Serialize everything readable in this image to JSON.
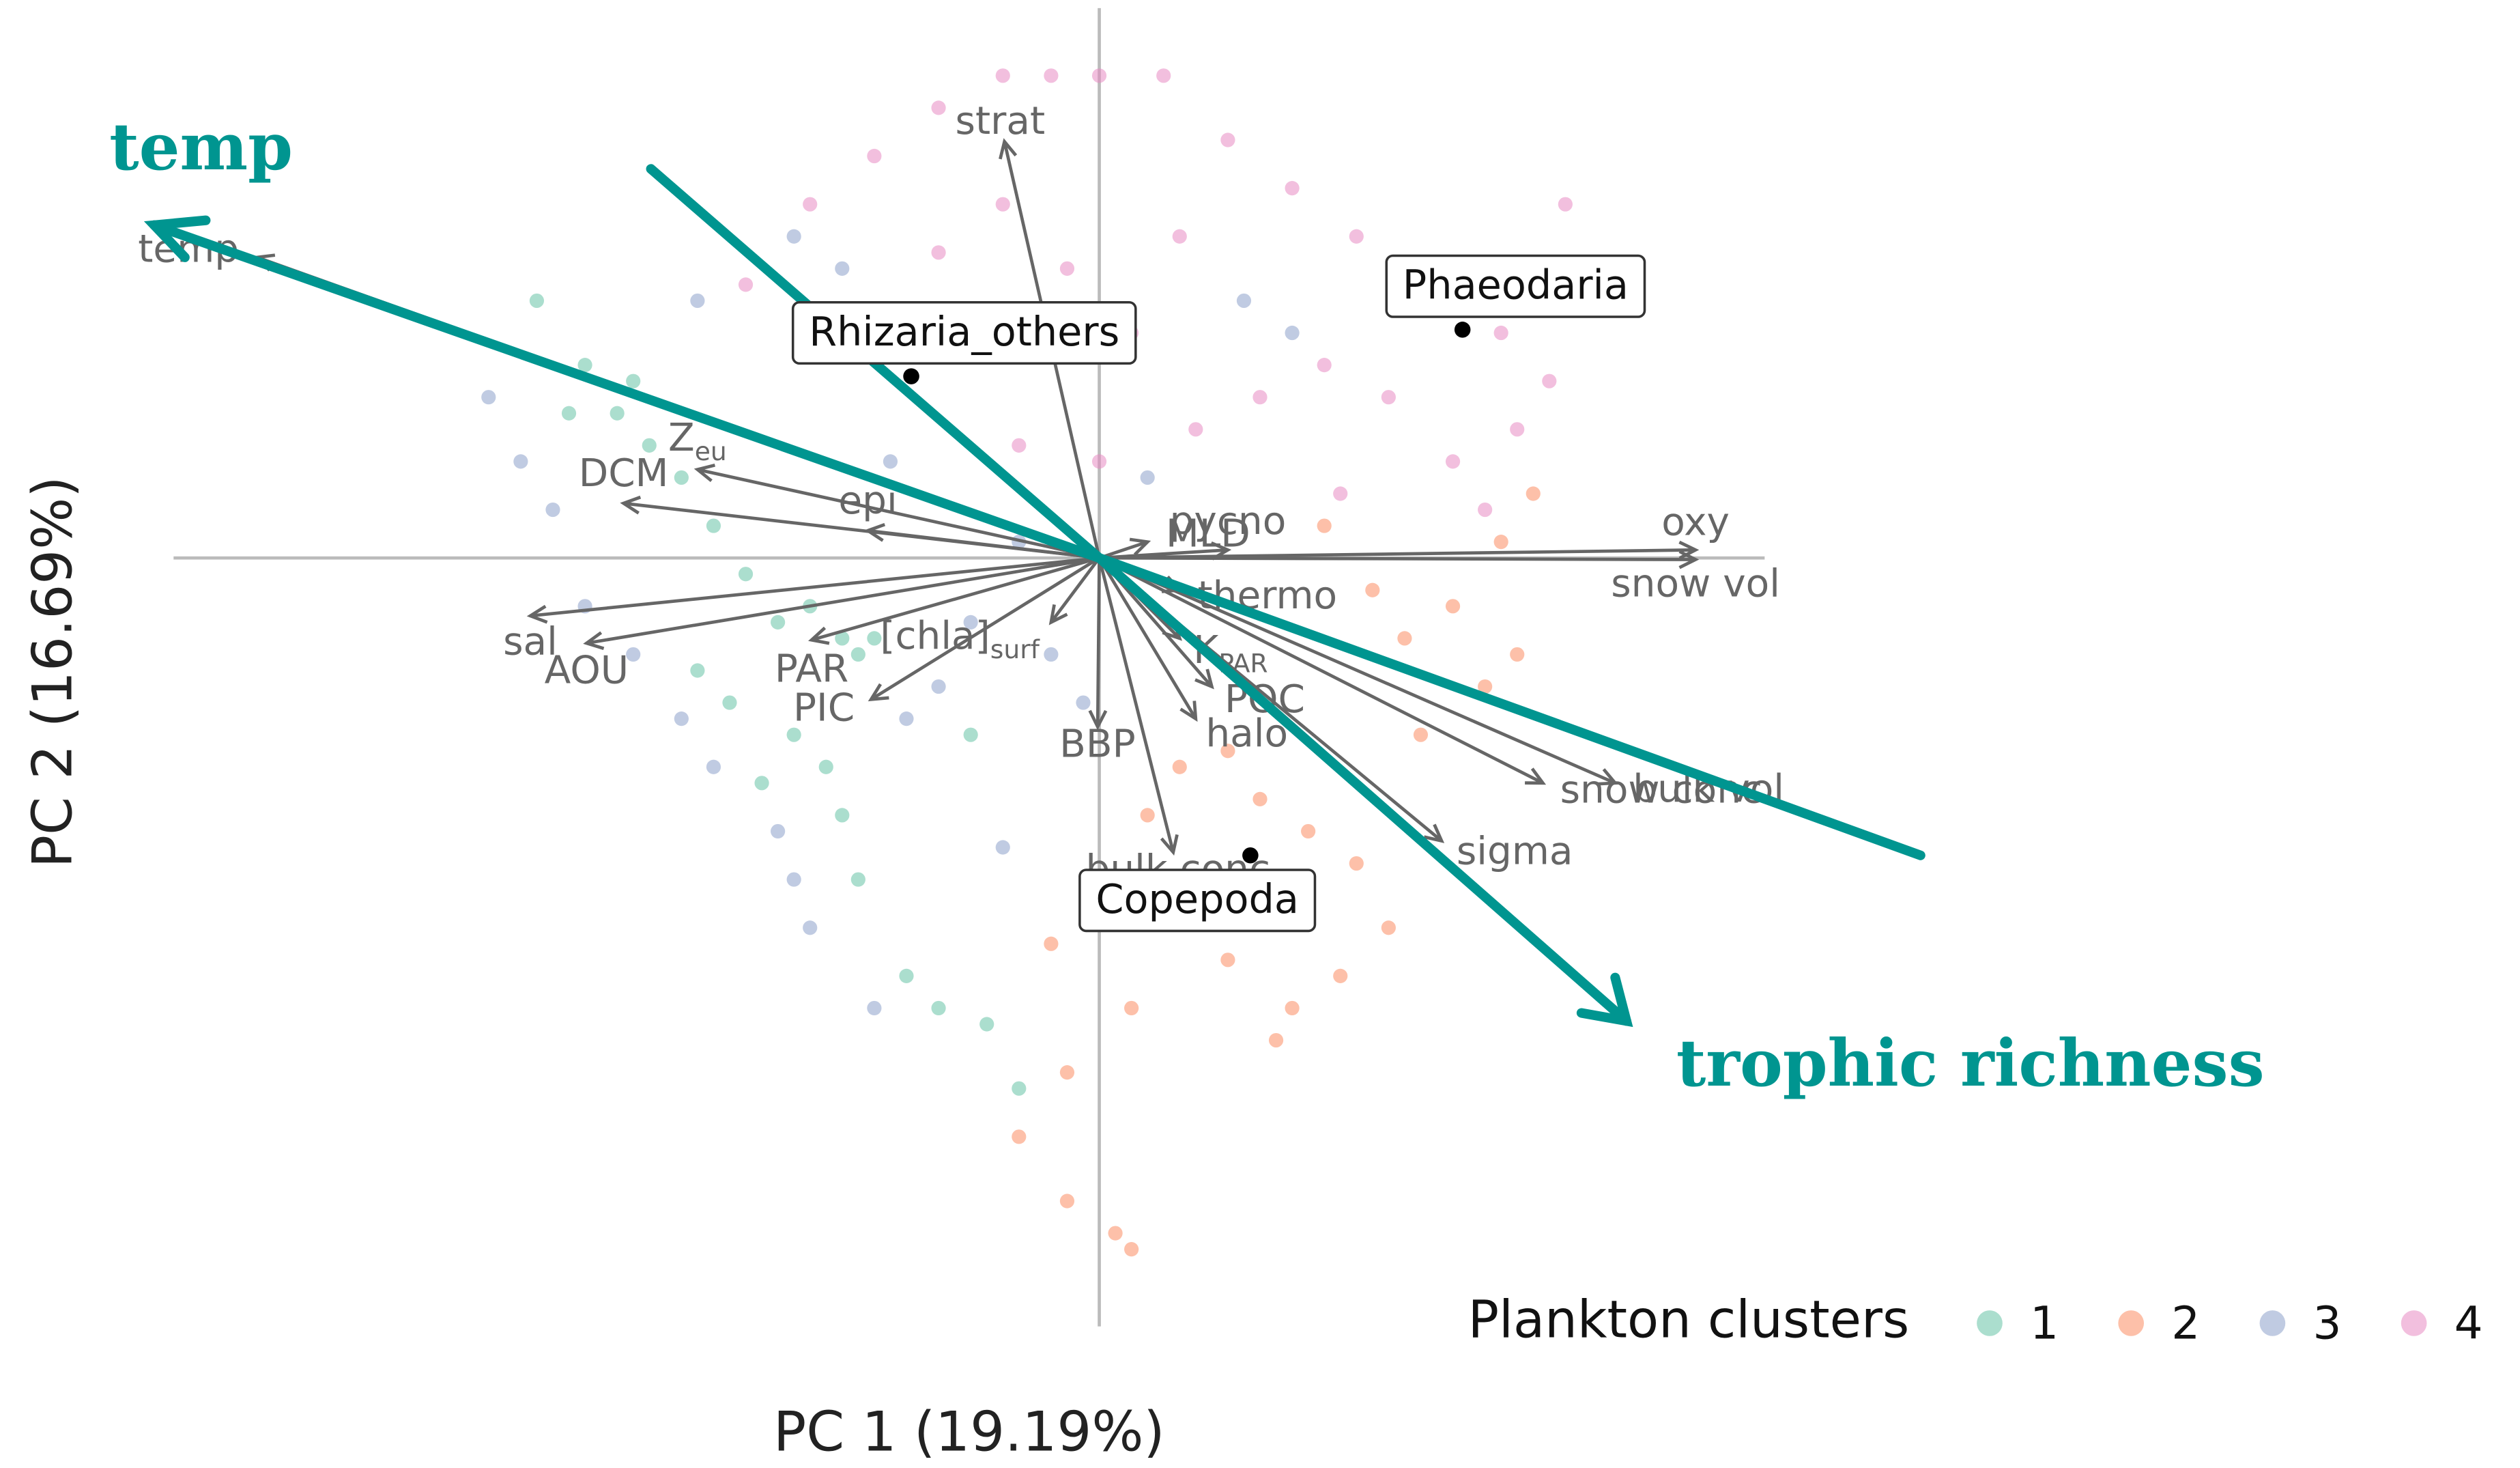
{
  "chart_data": {
    "type": "biplot",
    "xlabel": "PC 1 (19.19%)",
    "ylabel": "PC 2 (16.69%)",
    "xlim": [
      -5.8,
      5.2
    ],
    "ylim": [
      -4.83,
      3.47
    ],
    "legend_title": "Plankton clusters",
    "legend_position": "bottom-right",
    "series": [
      {
        "name": "1",
        "color": "#66c2a5",
        "x": [
          -3.5,
          -3.2,
          -3.0,
          -2.8,
          -2.6,
          -2.4,
          -2.2,
          -2.0,
          -1.8,
          -1.6,
          -1.5,
          -1.4,
          -2.5,
          -2.3,
          -1.9,
          -1.7,
          -1.6,
          -1.5,
          -1.2,
          -1.0,
          -0.7,
          -0.5,
          -3.3,
          -2.9,
          -2.1,
          -0.8
        ],
        "values": [
          1.6,
          1.2,
          0.9,
          0.7,
          0.5,
          0.2,
          -0.1,
          -0.4,
          -0.3,
          -0.5,
          -0.6,
          -0.5,
          -0.7,
          -0.9,
          -1.1,
          -1.3,
          -1.6,
          -2.0,
          -2.6,
          -2.8,
          -2.9,
          -3.3,
          0.9,
          1.1,
          -1.4,
          -1.1
        ]
      },
      {
        "name": "2",
        "color": "#fc8d62",
        "x": [
          0.5,
          0.8,
          1.0,
          1.3,
          1.6,
          1.8,
          1.5,
          1.2,
          0.8,
          0.5,
          0.2,
          -0.2,
          -0.5,
          -0.2,
          0.1,
          0.2,
          1.9,
          2.2,
          2.5,
          2.7,
          2.4,
          2.0,
          2.6,
          1.4,
          1.7,
          0.3,
          -0.3,
          1.1
        ],
        "values": [
          -1.3,
          -1.2,
          -1.5,
          -1.7,
          -1.9,
          -2.3,
          -2.6,
          -2.8,
          -2.5,
          -2.2,
          -2.8,
          -3.2,
          -3.6,
          -4.0,
          -4.2,
          -4.3,
          -0.5,
          -0.3,
          0.1,
          0.4,
          -0.8,
          -1.1,
          -0.6,
          0.2,
          -0.2,
          -1.6,
          -2.4,
          -3.0
        ]
      },
      {
        "name": "3",
        "color": "#8da0cb",
        "x": [
          -3.8,
          -3.6,
          -3.4,
          -3.2,
          -2.9,
          -2.6,
          -2.4,
          -2.0,
          -1.9,
          -1.8,
          -1.4,
          -1.2,
          -1.0,
          -0.8,
          -0.5,
          -0.3,
          -0.1,
          -1.3,
          -1.0,
          -1.6,
          -1.9,
          -2.5,
          0.3,
          0.9,
          1.2,
          -0.6
        ],
        "values": [
          1.0,
          0.6,
          0.3,
          -0.3,
          -0.6,
          -1.0,
          -1.3,
          -1.7,
          -2.0,
          -2.3,
          -2.8,
          -1.0,
          -0.8,
          -0.4,
          0.1,
          -0.6,
          -0.9,
          0.6,
          1.3,
          1.8,
          2.0,
          1.6,
          0.5,
          1.6,
          1.4,
          -1.8
        ]
      },
      {
        "name": "4",
        "color": "#e78ac3",
        "x": [
          -1.4,
          -1.0,
          -0.6,
          -0.3,
          0.0,
          0.4,
          0.8,
          1.2,
          1.6,
          2.0,
          2.5,
          2.8,
          2.6,
          2.2,
          1.8,
          1.4,
          1.0,
          0.6,
          0.2,
          -0.2,
          -0.6,
          -1.0,
          -1.8,
          -2.2,
          0.5,
          1.5,
          2.4,
          0.0,
          -0.5,
          2.9,
          -1.3
        ],
        "values": [
          2.5,
          2.8,
          3.0,
          3.0,
          3.0,
          3.0,
          2.6,
          2.3,
          2.0,
          1.8,
          1.4,
          1.1,
          0.8,
          0.6,
          1.0,
          1.2,
          1.0,
          0.8,
          1.4,
          1.8,
          2.2,
          1.9,
          2.2,
          1.7,
          2.0,
          0.4,
          0.3,
          0.6,
          0.7,
          2.2,
          1.5
        ]
      }
    ],
    "loadings": [
      {
        "name": "temp",
        "x": -5.24,
        "y": 1.87
      },
      {
        "name": "strat",
        "x": -0.59,
        "y": 2.59
      },
      {
        "name": "Z",
        "sub": "eu",
        "x": -2.5,
        "y": 0.55
      },
      {
        "name": "DCM",
        "x": -2.96,
        "y": 0.34
      },
      {
        "name": "epi",
        "x": -1.44,
        "y": 0.17
      },
      {
        "name": "sal",
        "x": -3.54,
        "y": -0.36
      },
      {
        "name": "AOU",
        "x": -3.19,
        "y": -0.53
      },
      {
        "name": "PAR",
        "x": -1.79,
        "y": -0.51
      },
      {
        "name": "PIC",
        "x": -1.42,
        "y": -0.88
      },
      {
        "name": "[chla]",
        "sub": "surf",
        "x": -0.3,
        "y": -0.4
      },
      {
        "name": "BBP",
        "x": -0.01,
        "y": -1.05
      },
      {
        "name": "bulk conc",
        "x": 0.46,
        "y": -1.83
      },
      {
        "name": "halo",
        "x": 0.6,
        "y": -1.0
      },
      {
        "name": "POC",
        "x": 0.7,
        "y": -0.8
      },
      {
        "name": "K",
        "sub": "PAR",
        "x": 0.5,
        "y": -0.5
      },
      {
        "name": "thermo",
        "x": 0.5,
        "y": -0.2
      },
      {
        "name": "MLD",
        "x": 0.3,
        "y": 0.1
      },
      {
        "name": "pycno",
        "x": 0.8,
        "y": 0.05
      },
      {
        "name": "oxy",
        "x": 3.71,
        "y": 0.05
      },
      {
        "name": "snow vol",
        "x": 3.71,
        "y": -0.01
      },
      {
        "name": "bulk vol",
        "x": 3.21,
        "y": -1.4
      },
      {
        "name": "snow conc",
        "x": 2.76,
        "y": -1.4
      },
      {
        "name": "sigma",
        "x": 2.13,
        "y": -1.76
      }
    ],
    "taxa": [
      {
        "name": "Rhizaria_others",
        "x": -1.17,
        "y": 1.13
      },
      {
        "name": "Phaeodaria",
        "x": 2.26,
        "y": 1.42
      },
      {
        "name": "Copepoda",
        "x": 0.94,
        "y": -1.85
      }
    ],
    "annotations": [
      "temp",
      "trophic richness"
    ]
  }
}
